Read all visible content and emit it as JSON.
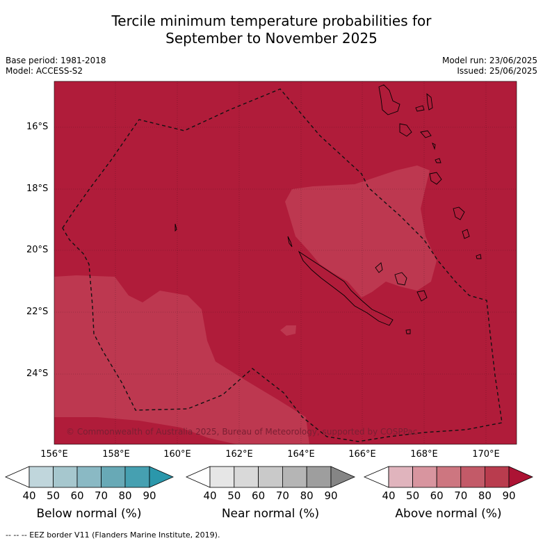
{
  "title_line1": "Tercile minimum temperature probabilities for",
  "title_line2": "September to November 2025",
  "meta_left": [
    "Base period: 1981-2018",
    "Model: ACCESS-S2"
  ],
  "meta_right": [
    "Model run: 23/06/2025",
    "Issued: 25/06/2025"
  ],
  "copyright": "© Commonwealth of Australia 2025, Bureau of Meteorology, supported by COSPPac",
  "footer": "-- -- -- EEZ border V11 (Flanders Marine Institute, 2019).",
  "lat_labels": [
    "16°S",
    "18°S",
    "20°S",
    "22°S",
    "24°S"
  ],
  "lon_labels": [
    "156°E",
    "158°E",
    "160°E",
    "162°E",
    "164°E",
    "166°E",
    "168°E",
    "170°E"
  ],
  "legend": {
    "ticks": [
      "40",
      "50",
      "60",
      "70",
      "80",
      "90"
    ],
    "below": {
      "label": "Below normal (%)",
      "colors": [
        "#ffffff",
        "#c0d6dc",
        "#a6c7ce",
        "#8ab9c4",
        "#68a9b6",
        "#46a0b1",
        "#2b97ab"
      ]
    },
    "near": {
      "label": "Near normal (%)",
      "colors": [
        "#ffffff",
        "#e6e6e6",
        "#d9d9d9",
        "#c9c9c9",
        "#b5b5b5",
        "#9e9e9e",
        "#858585"
      ]
    },
    "above": {
      "label": "Above normal (%)",
      "colors": [
        "#ffffff",
        "#e0b4bd",
        "#d8959f",
        "#cd7680",
        "#c35a68",
        "#b93c4e",
        "#ac1334"
      ]
    }
  },
  "map_colors": {
    "above_80_90": "#b01c3a",
    "above_70_80": "#bd3850",
    "eez_line": "#111111"
  }
}
